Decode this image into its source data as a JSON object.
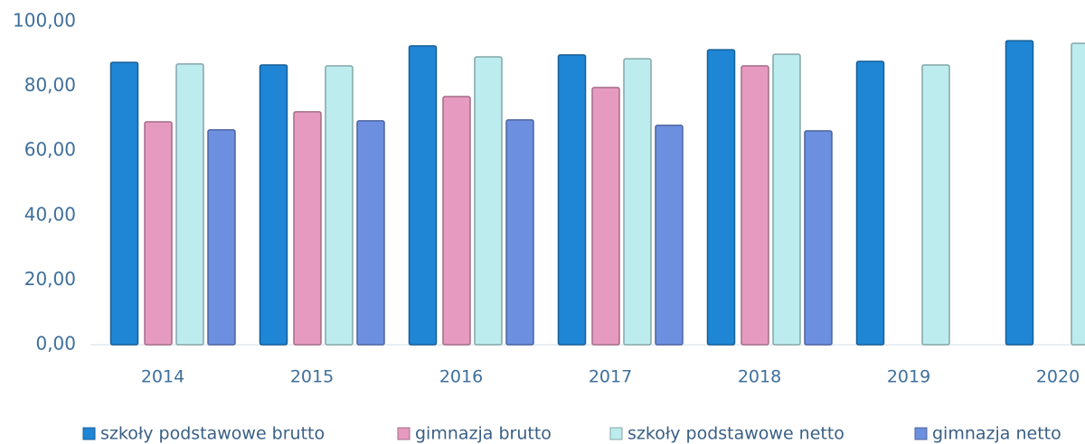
{
  "chart_data": {
    "type": "bar",
    "categories": [
      "2014",
      "2015",
      "2016",
      "2017",
      "2018",
      "2019",
      "2020"
    ],
    "series": [
      {
        "name": "szkoły podstawowe brutto",
        "color": "#1f86d6",
        "values": [
          87.4,
          86.6,
          92.5,
          89.7,
          91.3,
          87.7,
          94.1
        ]
      },
      {
        "name": "gimnazja brutto",
        "color": "#e79ac0",
        "values": [
          69.0,
          72.1,
          76.8,
          79.6,
          86.3,
          null,
          null
        ]
      },
      {
        "name": "szkoły podstawowe netto",
        "color": "#bdecef",
        "values": [
          86.9,
          86.3,
          89.1,
          88.5,
          89.9,
          86.6,
          93.3
        ]
      },
      {
        "name": "gimnazja netto",
        "color": "#6d8fe0",
        "values": [
          66.5,
          69.3,
          69.6,
          67.9,
          66.2,
          null,
          null
        ]
      }
    ],
    "ylim": [
      0,
      100
    ],
    "yticks": [
      {
        "value": 0,
        "label": "0,00"
      },
      {
        "value": 20,
        "label": "20,00"
      },
      {
        "value": 40,
        "label": "40,00"
      },
      {
        "value": 60,
        "label": "60,00"
      },
      {
        "value": 80,
        "label": "80,00"
      },
      {
        "value": 100,
        "label": "100,00"
      }
    ],
    "grid": false,
    "legend": "bottom"
  }
}
